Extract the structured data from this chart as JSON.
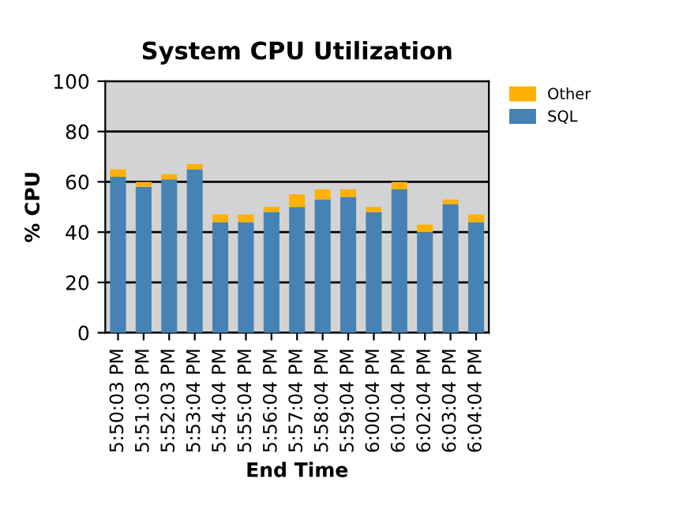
{
  "chart_data": {
    "type": "bar",
    "title": "System CPU Utilization",
    "xlabel": "End Time",
    "ylabel": "% CPU",
    "categories": [
      "5:50:03 PM",
      "5:51:03 PM",
      "5:52:03 PM",
      "5:53:04 PM",
      "5:54:04 PM",
      "5:55:04 PM",
      "5:56:04 PM",
      "5:57:04 PM",
      "5:58:04 PM",
      "5:59:04 PM",
      "6:00:04 PM",
      "6:01:04 PM",
      "6:02:04 PM",
      "6:03:04 PM",
      "6:04:04 PM"
    ],
    "stacked": true,
    "series": [
      {
        "name": "SQL",
        "color": "#4682b4",
        "values": [
          62,
          58,
          61,
          65,
          44,
          44,
          48,
          50,
          53,
          54,
          48,
          57,
          40,
          51,
          44
        ]
      },
      {
        "name": "Other",
        "color": "#ffb000",
        "values": [
          3,
          2,
          2,
          2,
          3,
          3,
          2,
          5,
          4,
          3,
          2,
          3,
          3,
          2,
          3
        ]
      }
    ],
    "ylim": [
      0,
      100
    ],
    "yticks": [
      0,
      20,
      40,
      60,
      80,
      100
    ],
    "grid": "y",
    "legend": "top right"
  }
}
